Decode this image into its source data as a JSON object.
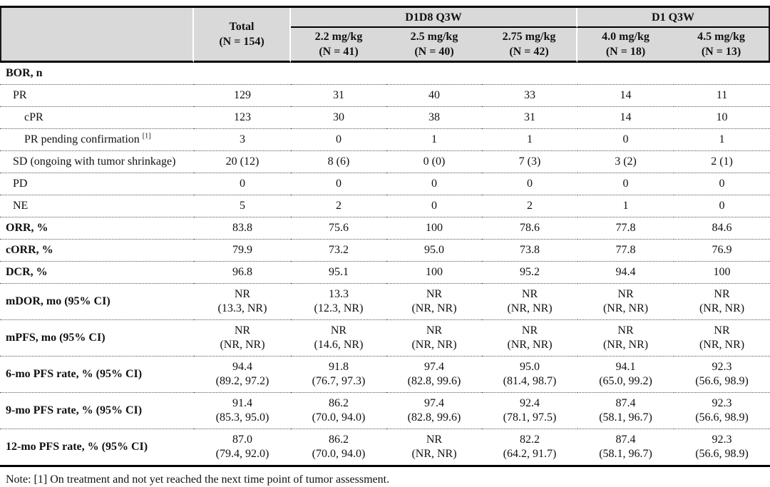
{
  "colors": {
    "header_bg": "#d9d9d9",
    "rule_black": "#000000",
    "row_separator_dotted": "#555555",
    "text": "#111111",
    "page_bg": "#ffffff"
  },
  "table": {
    "header": {
      "corner": "",
      "total": "Total\n(N = 154)",
      "groups": [
        {
          "label": "D1D8 Q3W"
        },
        {
          "label": "D1 Q3W"
        }
      ],
      "dose_columns": [
        "2.2 mg/kg\n(N = 41)",
        "2.5 mg/kg\n(N = 40)",
        "2.75 mg/kg\n(N = 42)",
        "4.0 mg/kg\n(N = 18)",
        "4.5 mg/kg\n(N = 13)"
      ]
    },
    "rows": [
      {
        "label": "BOR, n",
        "bold": true,
        "indent": 0,
        "cells": [
          "",
          "",
          "",
          "",
          "",
          ""
        ]
      },
      {
        "label": "PR",
        "bold": false,
        "indent": 1,
        "cells": [
          "129",
          "31",
          "40",
          "33",
          "14",
          "11"
        ]
      },
      {
        "label": "cPR",
        "bold": false,
        "indent": 2,
        "cells": [
          "123",
          "30",
          "38",
          "31",
          "14",
          "10"
        ]
      },
      {
        "label": "PR pending confirmation",
        "sup": "[1]",
        "bold": false,
        "indent": 2,
        "cells": [
          "3",
          "0",
          "1",
          "1",
          "0",
          "1"
        ]
      },
      {
        "label": "SD (ongoing with tumor shrinkage)",
        "bold": false,
        "indent": 1,
        "cells": [
          "20 (12)",
          "8 (6)",
          "0 (0)",
          "7 (3)",
          "3 (2)",
          "2 (1)"
        ]
      },
      {
        "label": "PD",
        "bold": false,
        "indent": 1,
        "cells": [
          "0",
          "0",
          "0",
          "0",
          "0",
          "0"
        ]
      },
      {
        "label": "NE",
        "bold": false,
        "indent": 1,
        "cells": [
          "5",
          "2",
          "0",
          "2",
          "1",
          "0"
        ]
      },
      {
        "label": "ORR, %",
        "bold": true,
        "indent": 0,
        "cells": [
          "83.8",
          "75.6",
          "100",
          "78.6",
          "77.8",
          "84.6"
        ]
      },
      {
        "label": "cORR, %",
        "bold": true,
        "indent": 0,
        "cells": [
          "79.9",
          "73.2",
          "95.0",
          "73.8",
          "77.8",
          "76.9"
        ]
      },
      {
        "label": "DCR, %",
        "bold": true,
        "indent": 0,
        "cells": [
          "96.8",
          "95.1",
          "100",
          "95.2",
          "94.4",
          "100"
        ]
      },
      {
        "label": "mDOR, mo (95% CI)",
        "bold": true,
        "indent": 0,
        "cells": [
          "NR\n(13.3, NR)",
          "13.3\n(12.3, NR)",
          "NR\n(NR, NR)",
          "NR\n(NR, NR)",
          "NR\n(NR, NR)",
          "NR\n(NR, NR)"
        ]
      },
      {
        "label": "mPFS, mo (95% CI)",
        "bold": true,
        "indent": 0,
        "cells": [
          "NR\n(NR, NR)",
          "NR\n(14.6, NR)",
          "NR\n(NR, NR)",
          "NR\n(NR, NR)",
          "NR\n(NR, NR)",
          "NR\n(NR, NR)"
        ]
      },
      {
        "label": "6-mo PFS rate, % (95% CI)",
        "bold": true,
        "indent": 0,
        "cells": [
          "94.4\n(89.2, 97.2)",
          "91.8\n(76.7, 97.3)",
          "97.4\n(82.8, 99.6)",
          "95.0\n(81.4, 98.7)",
          "94.1\n(65.0, 99.2)",
          "92.3\n(56.6, 98.9)"
        ]
      },
      {
        "label": "9-mo PFS rate, % (95% CI)",
        "bold": true,
        "indent": 0,
        "cells": [
          "91.4\n(85.3, 95.0)",
          "86.2\n(70.0, 94.0)",
          "97.4\n(82.8, 99.6)",
          "92.4\n(78.1, 97.5)",
          "87.4\n(58.1, 96.7)",
          "92.3\n(56.6, 98.9)"
        ]
      },
      {
        "label": "12-mo PFS rate, % (95% CI)",
        "bold": true,
        "indent": 0,
        "cells": [
          "87.0\n(79.4, 92.0)",
          "86.2\n(70.0, 94.0)",
          "NR\n(NR, NR)",
          "82.2\n(64.2, 91.7)",
          "87.4\n(58.1, 96.7)",
          "92.3\n(56.6, 98.9)"
        ]
      }
    ],
    "note": "Note: [1] On treatment and not yet reached the next time point of tumor assessment."
  }
}
